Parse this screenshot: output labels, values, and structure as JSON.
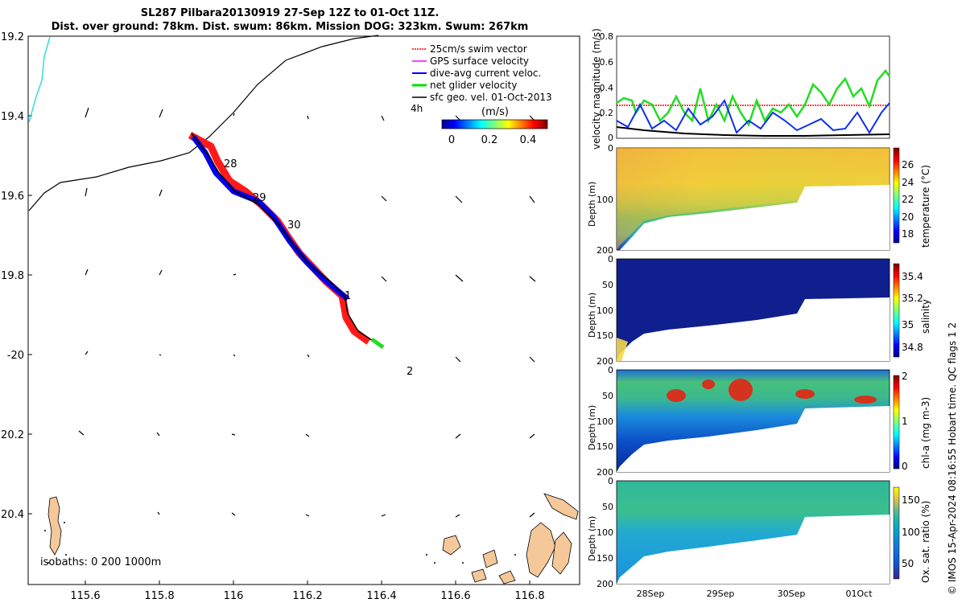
{
  "title": {
    "line1": "SL287 Pilbara20130919 27-Sep 12Z to 01-Oct 11Z.",
    "line2": "Dist. over ground: 78km. Dist. swum: 86km. Mission DOG: 323km. Swum: 267km"
  },
  "map": {
    "lat_ticks": [
      "19.2",
      "19.4",
      "19.6",
      "19.8",
      "-20",
      "20.2",
      "20.4"
    ],
    "lon_ticks": [
      "115.6",
      "115.8",
      "116",
      "116.2",
      "116.4",
      "116.6",
      "116.8"
    ],
    "day_labels": [
      "28",
      "29",
      "30",
      "1",
      "2"
    ],
    "legend": [
      {
        "label": "25cm/s swim vector",
        "color": "#ff0000"
      },
      {
        "label": "GPS surface velocity",
        "color": "#ff00ff"
      },
      {
        "label": "dive-avg current veloc.",
        "color": "#0000ff"
      },
      {
        "label": "net glider velocity",
        "color": "#00dd00"
      },
      {
        "label": "sfc geo. vel. 01-Oct-2013",
        "color": "#000000"
      }
    ],
    "hours_label": "4h",
    "colorbar_unit": "(m/s)",
    "colorbar_ticks": [
      "0",
      "0.2",
      "0.4"
    ],
    "isobaths": "isobaths: 0   200  1000m",
    "colors": {
      "track_red": "#ff0000",
      "track_blue": "#0000ff",
      "track_black": "#000000",
      "coast": "#f5c89a",
      "cyan": "#33dddd"
    }
  },
  "panels": {
    "velocity": {
      "ylabel": "velocity magnitude (m/s)",
      "yticks": [
        "0",
        "0.2",
        "0.4",
        "0.6",
        "0.8"
      ]
    },
    "temperature": {
      "ylabel": "Depth (m)",
      "cbar_label": "temperature (°C)",
      "cbar_ticks": [
        "26",
        "24",
        "22",
        "20",
        "18"
      ],
      "yticks": [
        "0",
        "100",
        "200"
      ]
    },
    "salinity": {
      "ylabel": "Depth (m)",
      "cbar_label": "salinity",
      "cbar_ticks": [
        "35.4",
        "35.2",
        "35",
        "34.8"
      ],
      "yticks": [
        "0",
        "50",
        "100",
        "150",
        "200"
      ]
    },
    "chla": {
      "ylabel": "Depth (m)",
      "cbar_label": "chl-a (mg m-3)",
      "cbar_ticks": [
        "2",
        "1",
        "0"
      ],
      "yticks": [
        "0",
        "50",
        "100",
        "150",
        "200"
      ]
    },
    "oxygen": {
      "ylabel": "Depth (m)",
      "cbar_label": "Ox. sat. ratio (%)",
      "cbar_ticks": [
        "150",
        "100",
        "50"
      ],
      "yticks": [
        "0",
        "50",
        "100",
        "150",
        "200"
      ]
    },
    "x_dates": [
      "28Sep",
      "29Sep",
      "30Sep",
      "01Oct"
    ],
    "qc_label": "QC flags 1  2"
  },
  "footer": "© IMOS 15-Apr-2024 08:16:55 Hobart time."
}
